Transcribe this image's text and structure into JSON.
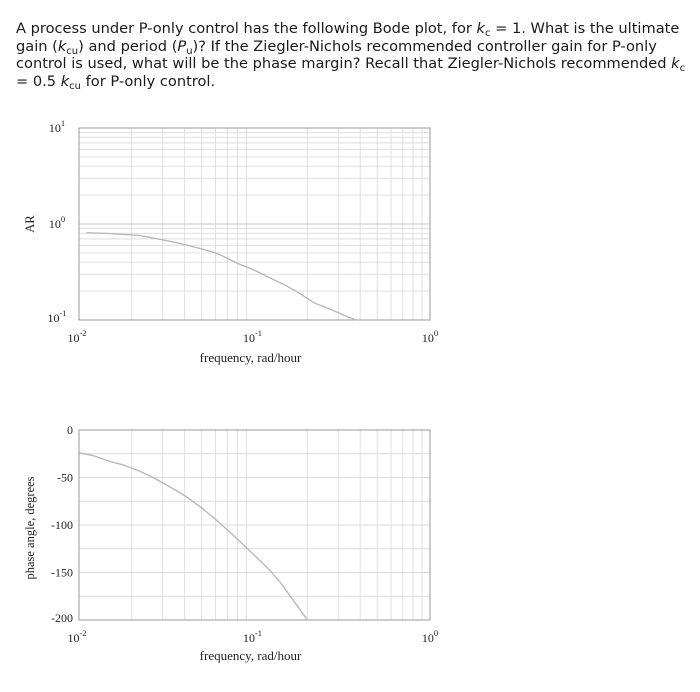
{
  "question": {
    "p1": "A process under P-only control has the following Bode plot, for ",
    "kc_sym": "k",
    "kc_sub": "c",
    "p2": " = 1. What is the ultimate gain (",
    "kcu_sym": "k",
    "kcu_sub": "cu",
    "p3": ") and period (",
    "pu_sym": "P",
    "pu_sub": "u",
    "p4": ")? If the Ziegler-Nichols recommended controller gain for P-only control is used, what will be the phase margin? Recall that Ziegler-Nichols recommended ",
    "p5": " = 0.5 ",
    "p6": " for P-only control."
  },
  "chart_data": [
    {
      "type": "line",
      "title": "",
      "xlabel": "frequency, rad/hour",
      "ylabel": "AR",
      "x_scale": "log",
      "y_scale": "log",
      "xlim": [
        0.01,
        1
      ],
      "ylim": [
        0.1,
        10
      ],
      "x_ticks": [
        {
          "base": "10",
          "exp": "-2"
        },
        {
          "base": "10",
          "exp": "-1"
        },
        {
          "base": "10",
          "exp": "0"
        }
      ],
      "y_ticks": [
        {
          "base": "10",
          "exp": "1"
        },
        {
          "base": "10",
          "exp": "0"
        },
        {
          "base": "10",
          "exp": "-1"
        }
      ],
      "grid": true,
      "series": [
        {
          "x": [
            0.011,
            0.014,
            0.018,
            0.022,
            0.027,
            0.033,
            0.04,
            0.05,
            0.06,
            0.07,
            0.08,
            0.1,
            0.12,
            0.15,
            0.18,
            0.22,
            0.27,
            0.33,
            0.38
          ],
          "y": [
            0.81,
            0.8,
            0.78,
            0.76,
            0.71,
            0.66,
            0.61,
            0.55,
            0.5,
            0.44,
            0.39,
            0.33,
            0.28,
            0.23,
            0.19,
            0.15,
            0.13,
            0.11,
            0.1
          ]
        }
      ]
    },
    {
      "type": "line",
      "title": "",
      "xlabel": "frequency, rad/hour",
      "ylabel": "phase angle, degrees",
      "x_scale": "log",
      "xlim": [
        0.01,
        1
      ],
      "ylim": [
        -200,
        0
      ],
      "x_ticks": [
        {
          "base": "10",
          "exp": "-2"
        },
        {
          "base": "10",
          "exp": "-1"
        },
        {
          "base": "10",
          "exp": "0"
        }
      ],
      "y_ticks": [
        0,
        -50,
        -100,
        -150,
        -200
      ],
      "grid": true,
      "series": [
        {
          "x": [
            0.01,
            0.012,
            0.015,
            0.018,
            0.022,
            0.027,
            0.033,
            0.04,
            0.05,
            0.06,
            0.07,
            0.08,
            0.1,
            0.12,
            0.14,
            0.16,
            0.18,
            0.2
          ],
          "y": [
            -24,
            -27,
            -33,
            -37,
            -43,
            -51,
            -60,
            -69,
            -82,
            -94,
            -105,
            -115,
            -132,
            -146,
            -160,
            -175,
            -188,
            -200
          ]
        }
      ]
    }
  ]
}
